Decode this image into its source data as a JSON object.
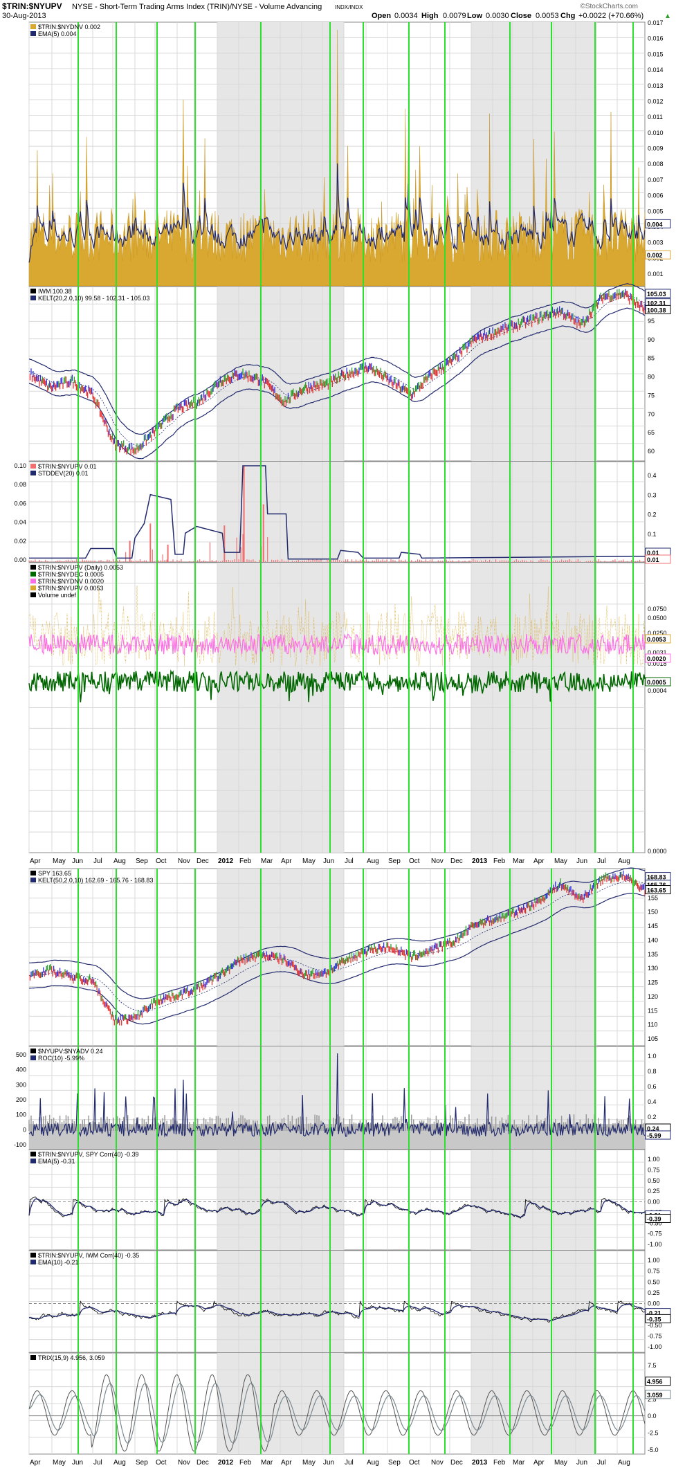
{
  "header": {
    "symbol": "$TRIN:$NYUPV",
    "description": "NYSE - Short-Term Trading Arms Index (TRIN)/NYSE - Volume Advancing",
    "exchange": "INDX/INDX",
    "date": "30-Aug-2013",
    "open_label": "Open",
    "open": "0.0034",
    "high_label": "High",
    "high": "0.0079",
    "low_label": "Low",
    "low": "0.0030",
    "close_label": "Close",
    "close": "0.0053",
    "chg_label": "Chg",
    "chg": "+0.0022 (+70.66%)",
    "chg_arrow": "▲",
    "watermark": "©StockCharts.com"
  },
  "colors": {
    "grid": "#d8d8d8",
    "shade": "#e6e6e6",
    "signal": "#2ee02e",
    "navy": "#222a6e",
    "gold": "#d9a830",
    "pink": "#ff6ee6",
    "green": "#006600",
    "salmon": "#f07070",
    "gray": "#9a9a9a",
    "up": "#2aa02a",
    "down": "#e03030",
    "blue": "#3030e0"
  },
  "x_axis": {
    "top_labels": [
      "Apr",
      "May",
      "Jun",
      "Jul",
      "Aug",
      "Sep",
      "Oct",
      "Nov",
      "Dec",
      "2012",
      "Feb",
      "Mar",
      "Apr",
      "May",
      "Jun",
      "Jul",
      "Aug",
      "Sep",
      "Oct",
      "Nov",
      "Dec",
      "2013",
      "Feb",
      "Mar",
      "Apr",
      "May",
      "Jun",
      "Jul",
      "Aug"
    ],
    "bottom_labels": [
      "Apr",
      "May",
      "Jun",
      "Jul",
      "Aug",
      "Sep",
      "Oct",
      "Nov",
      "Dec",
      "2012",
      "Feb",
      "Mar",
      "Apr",
      "May",
      "Jun",
      "Jul",
      "Aug",
      "Sep",
      "Oct",
      "Nov",
      "Dec",
      "2013",
      "Feb",
      "Mar",
      "Apr",
      "May",
      "Jun",
      "Jul",
      "Aug"
    ]
  },
  "panels": {
    "p1": {
      "legend": [
        {
          "text": "$TRIN:$NYDNV  0.002",
          "color": "#d9a830"
        },
        {
          "text": "EMA(5) 0.004",
          "color": "#222a6e"
        }
      ],
      "ticks": [
        "0.017",
        "0.016",
        "0.015",
        "0.014",
        "0.013",
        "0.012",
        "0.011",
        "0.010",
        "0.009",
        "0.008",
        "0.007",
        "0.006",
        "0.005",
        "0.004",
        "0.003",
        "0.002",
        "0.001"
      ],
      "boxes": [
        "0.004",
        "0.002"
      ]
    },
    "p2": {
      "legend": [
        {
          "text": "IWM  100.38",
          "color": "#000000"
        },
        {
          "text": "KELT(20,2.0,10) 99.58 - 102.31 - 105.03",
          "color": "#222a6e"
        }
      ],
      "ticks": [
        "95",
        "90",
        "85",
        "80",
        "75",
        "70",
        "65",
        "60"
      ],
      "boxes": [
        "105.03",
        "102.31",
        "100.38"
      ]
    },
    "p3": {
      "legend": [
        {
          "text": "$TRIN:$NYUPV  0.01",
          "color": "#f07070"
        },
        {
          "text": "STDDEV(20) 0.01",
          "color": "#222a6e"
        }
      ],
      "left_ticks": [
        "0.10",
        "0.08",
        "0.06",
        "0.04",
        "0.02",
        "0.00"
      ],
      "right_ticks": [
        "0.4",
        "0.3",
        "0.2",
        "0.1"
      ],
      "boxes": [
        "0.01",
        "0.01"
      ]
    },
    "p4": {
      "legend": [
        {
          "text": "$TRIN:$NYUPV (Daily) 0.0053",
          "color": "#000000"
        },
        {
          "text": "$TRIN:$NYDEC  0.0005",
          "color": "#006600"
        },
        {
          "text": "$TRIN:$NYDNV  0.0020",
          "color": "#ff6ee6"
        },
        {
          "text": "$TRIN:$NYUPV  0.0053",
          "color": "#d9a830"
        },
        {
          "text": "Volume undef",
          "color": "#000000"
        }
      ],
      "ticks": [
        "0.0750",
        "0.0500",
        "0.0250",
        "0.0031",
        "0.0018",
        "0.0004",
        "0.0000"
      ],
      "boxes": [
        "0.0053",
        "0.0020",
        "0.0005"
      ]
    },
    "p5": {
      "legend": [
        {
          "text": "SPY  163.65",
          "color": "#000000"
        },
        {
          "text": "KELT(50,2.0,10) 162.69 - 165.76 - 168.83",
          "color": "#222a6e"
        }
      ],
      "ticks": [
        "160",
        "155",
        "150",
        "145",
        "140",
        "135",
        "130",
        "125",
        "120",
        "115",
        "110",
        "105"
      ],
      "boxes": [
        "168.83",
        "165.76",
        "163.65"
      ]
    },
    "p6": {
      "legend": [
        {
          "text": "$NYUPV:$NYADV  0.24",
          "color": "#000000"
        },
        {
          "text": "ROC(10) -5.99%",
          "color": "#222a6e"
        }
      ],
      "left_ticks": [
        "500",
        "400",
        "300",
        "200",
        "100",
        "0",
        "-100"
      ],
      "right_ticks": [
        "1.0",
        "0.8",
        "0.6",
        "0.4",
        "0.2",
        "0.0"
      ],
      "boxes": [
        "0.24",
        "-5.99"
      ]
    },
    "p7": {
      "legend": [
        {
          "text": "$TRIN:$NYUPV, SPY Corr(40) -0.39",
          "color": "#000000"
        },
        {
          "text": "EMA(5) -0.31",
          "color": "#222a6e"
        }
      ],
      "ticks": [
        "1.00",
        "0.75",
        "0.50",
        "0.25",
        "0.00",
        "-0.25",
        "-0.50",
        "-0.75",
        "-1.00"
      ],
      "boxes": [
        "-0.31",
        "-0.39"
      ]
    },
    "p8": {
      "legend": [
        {
          "text": "$TRIN:$NYUPV, IWM Corr(40) -0.35",
          "color": "#000000"
        },
        {
          "text": "EMA(10) -0.21",
          "color": "#222a6e"
        }
      ],
      "ticks": [
        "1.00",
        "0.75",
        "0.50",
        "0.25",
        "0.00",
        "-0.25",
        "-0.50",
        "-0.75",
        "-1.00"
      ],
      "boxes": [
        "-0.21",
        "-0.35"
      ]
    },
    "p9": {
      "legend": [
        {
          "text": "TRIX(15,9) 4.956, 3.059",
          "color": "#000000"
        }
      ],
      "ticks": [
        "7.5",
        "5.0",
        "2.5",
        "0.0",
        "-2.5",
        "-5.0"
      ],
      "boxes": [
        "4.956",
        "3.059"
      ]
    }
  },
  "chart_data": [
    {
      "type": "area",
      "panel": "p1",
      "series": [
        {
          "name": "$TRIN:$NYDNV",
          "last": 0.002
        },
        {
          "name": "EMA(5)",
          "last": 0.004
        }
      ],
      "ylim": [
        0,
        0.017
      ]
    },
    {
      "type": "line",
      "panel": "p2",
      "series": [
        {
          "name": "IWM",
          "last": 100.38,
          "approx": [
            82,
            78,
            80,
            76,
            62,
            60,
            66,
            72,
            74,
            80,
            82,
            80,
            74,
            78,
            79,
            82,
            84,
            80,
            76,
            82,
            86,
            92,
            94,
            96,
            98,
            100,
            96,
            104,
            105,
            100.38
          ]
        },
        {
          "name": "KELT upper",
          "last": 105.03
        },
        {
          "name": "KELT middle",
          "last": 102.31
        },
        {
          "name": "KELT lower",
          "last": 99.58
        }
      ],
      "ylim": [
        57,
        107
      ]
    },
    {
      "type": "bar",
      "panel": "p3",
      "series": [
        {
          "name": "$TRIN:$NYUPV",
          "last": 0.01
        },
        {
          "name": "STDDEV(20)",
          "last": 0.01
        }
      ],
      "ylim": [
        0,
        0.1
      ]
    },
    {
      "type": "line",
      "panel": "p4",
      "series": [
        {
          "name": "$TRIN:$NYDEC",
          "last": 0.0005
        },
        {
          "name": "$TRIN:$NYDNV",
          "last": 0.002
        },
        {
          "name": "$TRIN:$NYUPV",
          "last": 0.0053
        }
      ]
    },
    {
      "type": "line",
      "panel": "p5",
      "series": [
        {
          "name": "SPY",
          "last": 163.65,
          "approx": [
            130,
            132,
            129,
            128,
            112,
            113,
            120,
            122,
            125,
            130,
            136,
            138,
            136,
            130,
            131,
            136,
            140,
            141,
            137,
            140,
            143,
            150,
            152,
            155,
            159,
            166,
            160,
            168,
            169,
            163.65
          ]
        },
        {
          "name": "KELT upper",
          "last": 168.83
        },
        {
          "name": "KELT middle",
          "last": 165.76
        },
        {
          "name": "KELT lower",
          "last": 162.69
        }
      ],
      "ylim": [
        102,
        172
      ]
    },
    {
      "type": "bar",
      "panel": "p6",
      "series": [
        {
          "name": "$NYUPV:$NYADV",
          "last": 0.24
        },
        {
          "name": "ROC(10)",
          "last": -5.99
        }
      ],
      "ylim": [
        -100,
        550
      ]
    },
    {
      "type": "line",
      "panel": "p7",
      "series": [
        {
          "name": "Corr(40) SPY",
          "last": -0.39
        },
        {
          "name": "EMA(5)",
          "last": -0.31
        }
      ],
      "ylim": [
        -1,
        1
      ]
    },
    {
      "type": "line",
      "panel": "p8",
      "series": [
        {
          "name": "Corr(40) IWM",
          "last": -0.35
        },
        {
          "name": "EMA(10)",
          "last": -0.21
        }
      ],
      "ylim": [
        -1,
        1
      ]
    },
    {
      "type": "line",
      "panel": "p9",
      "series": [
        {
          "name": "TRIX(15)",
          "last": 4.956
        },
        {
          "name": "Signal(9)",
          "last": 3.059
        }
      ],
      "ylim": [
        -5.5,
        9
      ]
    }
  ]
}
